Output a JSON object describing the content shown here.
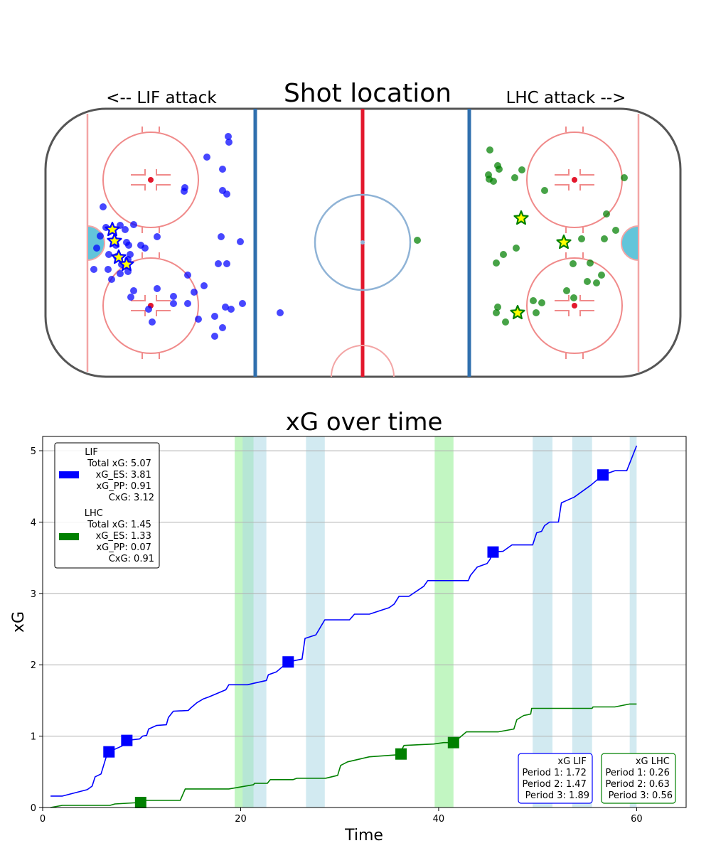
{
  "colors": {
    "lif": "#0000ff",
    "lhc": "#008000",
    "star_fill": "#ffff00",
    "pp_band": "#add8e6",
    "lhc_pp_band": "#90ee90",
    "goal_crease": "#63c5da",
    "rink_red": "#e8303c",
    "rink_blue": "#2f6fae"
  },
  "rink": {
    "title": "Shot location",
    "left_label": "<-- LIF attack",
    "right_label": "LHC attack -->"
  },
  "chart_data": [
    {
      "type": "scatter",
      "title": "Shot location",
      "series": [
        {
          "name": "LIF",
          "shots": [
            [
              321,
              192
            ],
            [
              322,
              200
            ],
            [
              291,
              221
            ],
            [
              313,
              238
            ],
            [
              260,
              264
            ],
            [
              259,
              269
            ],
            [
              313,
              268
            ],
            [
              319,
              273
            ],
            [
              145,
              291
            ],
            [
              149,
              320
            ],
            [
              169,
              317
            ],
            [
              176,
              323
            ],
            [
              188,
              316
            ],
            [
              141,
              332
            ],
            [
              221,
              333
            ],
            [
              311,
              333
            ],
            [
              338,
              340
            ],
            [
              163,
              345
            ],
            [
              178,
              341
            ],
            [
              181,
              345
            ],
            [
              198,
              345
            ],
            [
              204,
              349
            ],
            [
              136,
              349
            ],
            [
              153,
              358
            ],
            [
              164,
              361
            ],
            [
              183,
              358
            ],
            [
              180,
              365
            ],
            [
              171,
              372
            ],
            [
              152,
              379
            ],
            [
              132,
              379
            ],
            [
              169,
              385
            ],
            [
              180,
              382
            ],
            [
              307,
              371
            ],
            [
              319,
              371
            ],
            [
              264,
              387
            ],
            [
              157,
              393
            ],
            [
              287,
              402
            ],
            [
              221,
              406
            ],
            [
              188,
              409
            ],
            [
              273,
              411
            ],
            [
              184,
              418
            ],
            [
              244,
              417
            ],
            [
              244,
              427
            ],
            [
              264,
              427
            ],
            [
              209,
              435
            ],
            [
              317,
              432
            ],
            [
              325,
              435
            ],
            [
              341,
              427
            ],
            [
              302,
              445
            ],
            [
              279,
              449
            ],
            [
              313,
              461
            ],
            [
              214,
              453
            ],
            [
              302,
              473
            ],
            [
              394,
              440
            ]
          ],
          "goals": [
            [
              158,
              323
            ],
            [
              161,
              339
            ],
            [
              167,
              362
            ],
            [
              178,
              372
            ]
          ]
        },
        {
          "name": "LHC",
          "shots": [
            [
              689,
              211
            ],
            [
              700,
              233
            ],
            [
              702,
              238
            ],
            [
              734,
              239
            ],
            [
              687,
              246
            ],
            [
              688,
              252
            ],
            [
              694,
              255
            ],
            [
              724,
              250
            ],
            [
              766,
              268
            ],
            [
              878,
              250
            ],
            [
              853,
              301
            ],
            [
              866,
              324
            ],
            [
              587,
              338
            ],
            [
              818,
              336
            ],
            [
              850,
              336
            ],
            [
              726,
              349
            ],
            [
              708,
              358
            ],
            [
              698,
              370
            ],
            [
              806,
              371
            ],
            [
              830,
              370
            ],
            [
              846,
              387
            ],
            [
              826,
              396
            ],
            [
              839,
              398
            ],
            [
              797,
              409
            ],
            [
              807,
              419
            ],
            [
              750,
              423
            ],
            [
              762,
              426
            ],
            [
              700,
              432
            ],
            [
              698,
              440
            ],
            [
              754,
              440
            ],
            [
              711,
              453
            ]
          ],
          "goals": [
            [
              733,
              307
            ],
            [
              793,
              341
            ],
            [
              728,
              440
            ]
          ]
        }
      ]
    },
    {
      "type": "line",
      "title": "xG over time",
      "xlabel": "Time",
      "ylabel": "xG",
      "xlim": [
        0,
        65
      ],
      "ylim": [
        0,
        5.2
      ],
      "xticks": [
        0,
        20,
        40,
        60
      ],
      "yticks": [
        0,
        1,
        2,
        3,
        4,
        5
      ],
      "grid": "y",
      "legend_position": "upper left",
      "pp_bands_lif": [
        [
          20.2,
          22.6
        ],
        [
          26.6,
          28.5
        ],
        [
          49.5,
          51.5
        ],
        [
          53.5,
          55.5
        ],
        [
          59.3,
          60
        ]
      ],
      "pp_bands_lhc": [
        [
          19.4,
          21.3
        ],
        [
          39.6,
          41.5
        ]
      ],
      "series": [
        {
          "name": "LIF",
          "legend": [
            "LIF",
            "Total xG: 5.07",
            "xG_ES: 3.81",
            "xG_PP: 0.91",
            "CxG: 3.12"
          ],
          "points": [
            [
              0.8,
              0.16
            ],
            [
              2.0,
              0.16
            ],
            [
              4.5,
              0.25
            ],
            [
              5.0,
              0.3
            ],
            [
              5.3,
              0.43
            ],
            [
              5.6,
              0.45
            ],
            [
              5.9,
              0.47
            ],
            [
              6.4,
              0.7
            ],
            [
              6.7,
              0.78
            ],
            [
              8.3,
              0.88
            ],
            [
              8.5,
              0.94
            ],
            [
              9.8,
              0.96
            ],
            [
              10.1,
              1.0
            ],
            [
              10.5,
              1.01
            ],
            [
              10.7,
              1.1
            ],
            [
              11.5,
              1.15
            ],
            [
              12.5,
              1.16
            ],
            [
              12.7,
              1.26
            ],
            [
              13.2,
              1.35
            ],
            [
              14.7,
              1.36
            ],
            [
              15.0,
              1.4
            ],
            [
              15.6,
              1.47
            ],
            [
              16.2,
              1.52
            ],
            [
              16.8,
              1.55
            ],
            [
              18.5,
              1.65
            ],
            [
              18.8,
              1.72
            ],
            [
              20.7,
              1.72
            ],
            [
              21.3,
              1.74
            ],
            [
              22.6,
              1.78
            ],
            [
              22.8,
              1.86
            ],
            [
              23.6,
              1.9
            ],
            [
              24.8,
              2.04
            ],
            [
              26.2,
              2.08
            ],
            [
              26.5,
              2.37
            ],
            [
              27.6,
              2.42
            ],
            [
              28.5,
              2.63
            ],
            [
              31.0,
              2.63
            ],
            [
              31.5,
              2.71
            ],
            [
              33.0,
              2.71
            ],
            [
              35.0,
              2.8
            ],
            [
              35.5,
              2.85
            ],
            [
              36.0,
              2.96
            ],
            [
              37.0,
              2.96
            ],
            [
              38.5,
              3.1
            ],
            [
              38.9,
              3.18
            ],
            [
              43.0,
              3.18
            ],
            [
              43.2,
              3.25
            ],
            [
              43.9,
              3.37
            ],
            [
              44.9,
              3.42
            ],
            [
              45.2,
              3.48
            ],
            [
              45.5,
              3.58
            ],
            [
              46.5,
              3.59
            ],
            [
              47.4,
              3.68
            ],
            [
              49.5,
              3.68
            ],
            [
              49.9,
              3.85
            ],
            [
              50.4,
              3.87
            ],
            [
              50.7,
              3.95
            ],
            [
              51.2,
              4.0
            ],
            [
              52.1,
              4.0
            ],
            [
              52.4,
              4.27
            ],
            [
              52.9,
              4.3
            ],
            [
              53.7,
              4.35
            ],
            [
              55.4,
              4.52
            ],
            [
              56.6,
              4.66
            ],
            [
              57.8,
              4.72
            ],
            [
              59.0,
              4.72
            ],
            [
              60.0,
              5.07
            ]
          ],
          "goals": [
            [
              6.7,
              0.78
            ],
            [
              8.5,
              0.94
            ],
            [
              24.8,
              2.04
            ],
            [
              45.5,
              3.58
            ],
            [
              56.6,
              4.66
            ]
          ]
        },
        {
          "name": "LHC",
          "legend": [
            "LHC",
            "Total xG: 1.45",
            "xG_ES: 1.33",
            "xG_PP: 0.07",
            "CxG: 0.91"
          ],
          "points": [
            [
              0.8,
              0.0
            ],
            [
              2.0,
              0.03
            ],
            [
              6.8,
              0.03
            ],
            [
              7.3,
              0.05
            ],
            [
              9.8,
              0.07
            ],
            [
              9.9,
              0.1
            ],
            [
              13.9,
              0.1
            ],
            [
              14.4,
              0.26
            ],
            [
              18.8,
              0.26
            ],
            [
              21.3,
              0.32
            ],
            [
              21.4,
              0.34
            ],
            [
              22.7,
              0.34
            ],
            [
              23.0,
              0.39
            ],
            [
              25.3,
              0.39
            ],
            [
              25.7,
              0.41
            ],
            [
              28.6,
              0.41
            ],
            [
              29.8,
              0.45
            ],
            [
              30.1,
              0.59
            ],
            [
              30.8,
              0.64
            ],
            [
              33.0,
              0.71
            ],
            [
              36.0,
              0.74
            ],
            [
              36.5,
              0.87
            ],
            [
              39.5,
              0.89
            ],
            [
              40.5,
              0.91
            ],
            [
              41.5,
              0.91
            ],
            [
              42.3,
              1.0
            ],
            [
              42.8,
              1.06
            ],
            [
              46.0,
              1.06
            ],
            [
              47.6,
              1.1
            ],
            [
              47.9,
              1.23
            ],
            [
              48.6,
              1.29
            ],
            [
              49.0,
              1.3
            ],
            [
              49.3,
              1.31
            ],
            [
              49.4,
              1.39
            ],
            [
              55.5,
              1.39
            ],
            [
              55.6,
              1.41
            ],
            [
              57.8,
              1.41
            ],
            [
              59.3,
              1.45
            ],
            [
              60.0,
              1.45
            ]
          ],
          "goals": [
            [
              9.9,
              0.07
            ],
            [
              36.2,
              0.75
            ],
            [
              41.5,
              0.91
            ]
          ]
        }
      ],
      "period_boxes": [
        {
          "title": "xG LIF",
          "lines": [
            "Period 1: 1.72",
            "Period 2: 1.47",
            "Period 3: 1.89"
          ]
        },
        {
          "title": "xG LHC",
          "lines": [
            "Period 1: 0.26",
            "Period 2: 0.63",
            "Period 3: 0.56"
          ]
        }
      ]
    }
  ]
}
